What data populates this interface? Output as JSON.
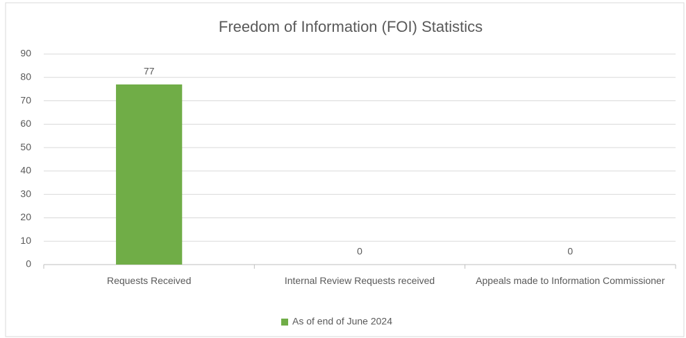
{
  "chart_data": {
    "type": "bar",
    "title": "Freedom of Information (FOI) Statistics",
    "categories": [
      "Requests Received",
      "Internal Review Requests received",
      "Appeals made to Information Commissioner"
    ],
    "series": [
      {
        "name": "As of end of June 2024",
        "color": "#70ad47",
        "values": [
          77,
          0,
          0
        ]
      }
    ],
    "ylim": [
      0,
      90
    ],
    "yticks": [
      0,
      10,
      20,
      30,
      40,
      50,
      60,
      70,
      80,
      90
    ],
    "grid": true,
    "legend": "bottom"
  }
}
